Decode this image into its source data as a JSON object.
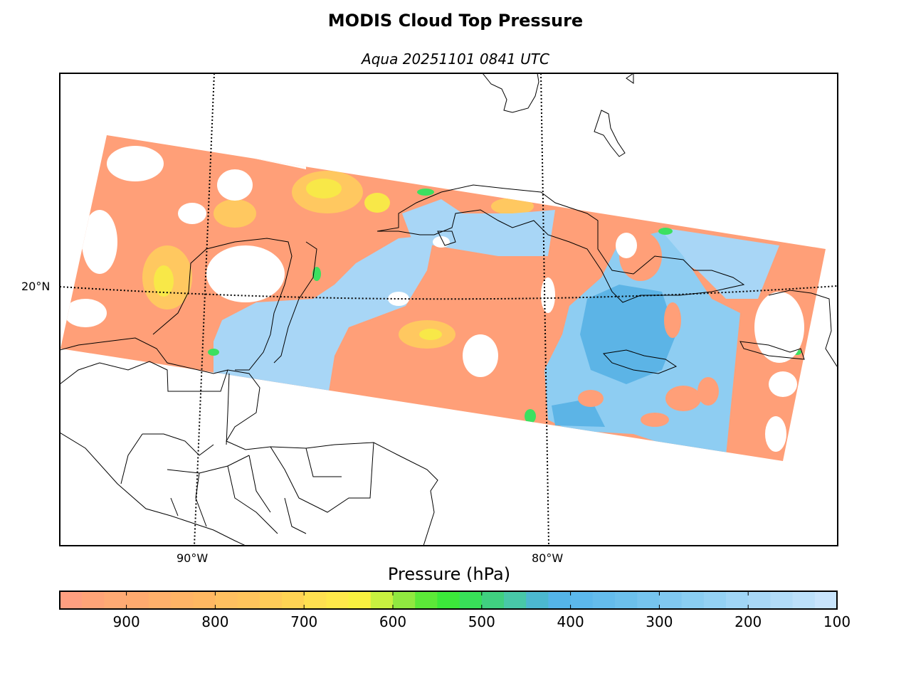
{
  "title": "MODIS Cloud Top Pressure",
  "subtitle": "Aqua 20251101 0841 UTC",
  "map": {
    "lat_labels": [
      "20°N"
    ],
    "lon_labels": [
      "90°W",
      "80°W"
    ]
  },
  "colorbar": {
    "label": "Pressure (hPa)",
    "range": [
      975,
      100
    ],
    "step": 25,
    "ticks": [
      "900",
      "800",
      "700",
      "600",
      "500",
      "400",
      "300",
      "200",
      "100"
    ],
    "colors": [
      "#ff9f80",
      "#ffa478",
      "#ffaa74",
      "#ffaa6f",
      "#ffb06b",
      "#ffb466",
      "#ffb862",
      "#ffc060",
      "#ffc45c",
      "#ffcc58",
      "#ffd454",
      "#ffe050",
      "#ffe84a",
      "#f8f040",
      "#c8f040",
      "#90e840",
      "#5ce838",
      "#3ce83a",
      "#38e058",
      "#40d080",
      "#48c8a8",
      "#4cb8d0",
      "#54b4e8",
      "#5cb8ec",
      "#64bcec",
      "#6cc0ec",
      "#76c4ee",
      "#80c8f0",
      "#8acef2",
      "#94d2f4",
      "#a0d6f6",
      "#a8d8f6",
      "#b2dcf8",
      "#bce0fa",
      "#c8e4fc"
    ]
  }
}
